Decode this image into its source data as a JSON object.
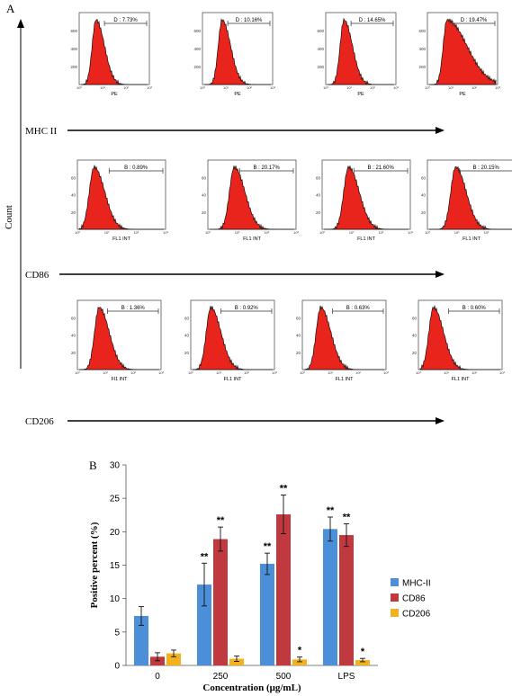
{
  "panel_a": {
    "label": "A",
    "y_axis_label": "Count",
    "rows": [
      {
        "marker": "MHC II",
        "panels": [
          {
            "gate": "D : 7.73%",
            "x_label": "PE"
          },
          {
            "gate": "D : 10.16%",
            "x_label": "PE"
          },
          {
            "gate": "D : 14.65%",
            "x_label": "PE"
          },
          {
            "gate": "D : 19.47%",
            "x_label": "PE"
          }
        ]
      },
      {
        "marker": "CD86",
        "panels": [
          {
            "gate": "B : 0.89%",
            "x_label": "FL1 INT"
          },
          {
            "gate": "B : 20.17%",
            "x_label": "FL1 INT"
          },
          {
            "gate": "B : 21.60%",
            "x_label": "FL1 INT"
          },
          {
            "gate": "B : 20.15%",
            "x_label": "FL1 INT"
          }
        ]
      },
      {
        "marker": "CD206",
        "panels": [
          {
            "gate": "B : 1.36%",
            "x_label": "Fl1 INT"
          },
          {
            "gate": "B : 0.92%",
            "x_label": "FL1 INT"
          },
          {
            "gate": "B : 0.63%",
            "x_label": "FL1 INT"
          },
          {
            "gate": "B : 0.60%",
            "x_label": "FL1 INT"
          }
        ]
      }
    ]
  },
  "panel_b": {
    "label": "B"
  },
  "chart_data": {
    "type": "bar",
    "categories": [
      "0",
      "250",
      "500",
      "LPS"
    ],
    "series": [
      {
        "name": "MHC-II",
        "values": [
          7.4,
          12.1,
          15.2,
          20.4
        ],
        "errors": [
          1.4,
          3.2,
          1.6,
          1.8
        ],
        "significance": [
          "",
          "**",
          "**",
          "**"
        ],
        "color": "#4a8fd8"
      },
      {
        "name": "CD86",
        "values": [
          1.3,
          18.9,
          22.6,
          19.5
        ],
        "errors": [
          0.6,
          1.8,
          2.9,
          1.7
        ],
        "significance": [
          "",
          "**",
          "**",
          "**"
        ],
        "color": "#c0393f"
      },
      {
        "name": "CD206",
        "values": [
          1.8,
          1.0,
          0.9,
          0.8
        ],
        "errors": [
          0.5,
          0.4,
          0.35,
          0.25
        ],
        "significance": [
          "",
          "",
          "*",
          "*"
        ],
        "color": "#f2b21e"
      }
    ],
    "xlabel": "Concentration (μg/mL)",
    "ylabel": "Positive percent (%)",
    "ylim": [
      0,
      30
    ],
    "yticks": [
      "0",
      "5",
      "10",
      "15",
      "20",
      "25",
      "30"
    ],
    "legend_position": "right"
  }
}
